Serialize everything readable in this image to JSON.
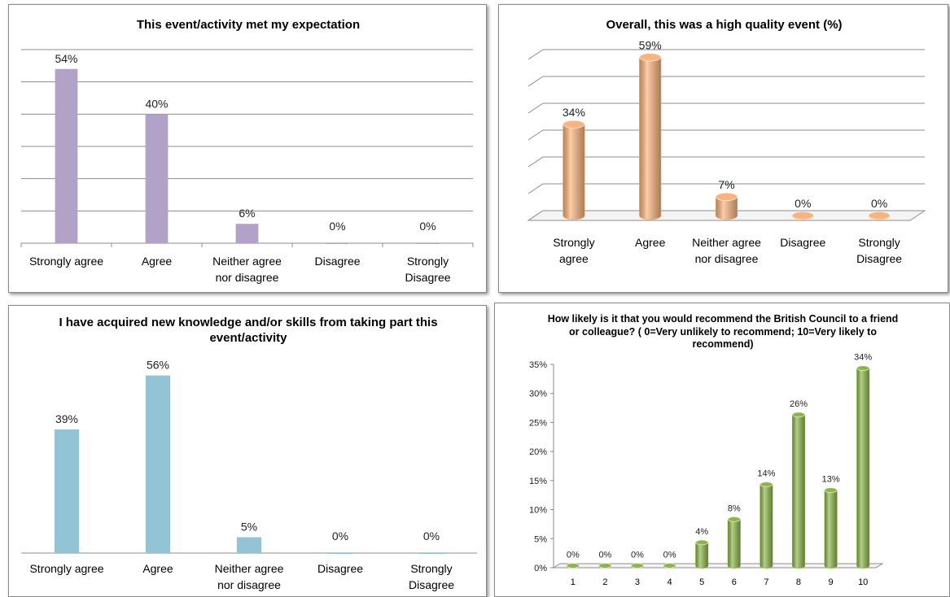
{
  "chart_data": [
    {
      "type": "bar",
      "title": "This event/activity met my expectation",
      "categories": [
        "Strongly agree",
        "Agree",
        "Neither agree nor disagree",
        "Disagree",
        "Strongly Disagree"
      ],
      "values": [
        54,
        40,
        6,
        0,
        0
      ],
      "value_labels": [
        "54%",
        "40%",
        "6%",
        "0%",
        "0%"
      ],
      "color": "#b3a2c7",
      "ylim": [
        0,
        60
      ],
      "yticks": [
        0,
        10,
        20,
        30,
        40,
        50,
        60
      ],
      "y_tick_labels": false,
      "grid": true,
      "style": "flat"
    },
    {
      "type": "bar",
      "title": "Overall, this was a high quality event (%)",
      "categories": [
        "Strongly agree",
        "Agree",
        "Neither agree nor disagree",
        "Disagree",
        "Strongly Disagree"
      ],
      "values": [
        34,
        59,
        7,
        0,
        0
      ],
      "value_labels": [
        "34%",
        "59%",
        "7%",
        "0%",
        "0%"
      ],
      "color": "#fab37a",
      "ylim": [
        0,
        60
      ],
      "yticks": [
        0,
        10,
        20,
        30,
        40,
        50,
        60
      ],
      "y_tick_labels": false,
      "grid": true,
      "style": "cylinder"
    },
    {
      "type": "bar",
      "title": "I have acquired new knowledge and/or skills from taking part this event/activity",
      "categories": [
        "Strongly agree",
        "Agree",
        "Neither agree nor disagree",
        "Disagree",
        "Strongly Disagree"
      ],
      "values": [
        39,
        56,
        5,
        0,
        0
      ],
      "value_labels": [
        "39%",
        "56%",
        "5%",
        "0%",
        "0%"
      ],
      "color": "#93c4d5",
      "ylim": [
        0,
        60
      ],
      "yticks": [
        0
      ],
      "y_tick_labels": false,
      "grid": false,
      "style": "flat"
    },
    {
      "type": "bar",
      "title": "How likely is it that you would recommend the British Council to a friend or colleague? ( 0=Very unlikely to recommend; 10=Very likely to recommend)",
      "categories": [
        "1",
        "2",
        "3",
        "4",
        "5",
        "6",
        "7",
        "8",
        "9",
        "10"
      ],
      "values": [
        0,
        0,
        0,
        0,
        4,
        8,
        14,
        26,
        13,
        34
      ],
      "value_labels": [
        "0%",
        "0%",
        "0%",
        "0%",
        "4%",
        "8%",
        "14%",
        "26%",
        "13%",
        "34%"
      ],
      "color": "#8db64a",
      "ylim": [
        0,
        35
      ],
      "yticks": [
        {
          "value": 0,
          "label": "0%"
        },
        {
          "value": 5,
          "label": "5%"
        },
        {
          "value": 10,
          "label": "10%"
        },
        {
          "value": 15,
          "label": "15%"
        },
        {
          "value": 20,
          "label": "20%"
        },
        {
          "value": 25,
          "label": "25%"
        },
        {
          "value": 30,
          "label": "30%"
        },
        {
          "value": 35,
          "label": "35%"
        }
      ],
      "y_tick_labels": true,
      "grid": false,
      "style": "cylinder"
    }
  ]
}
